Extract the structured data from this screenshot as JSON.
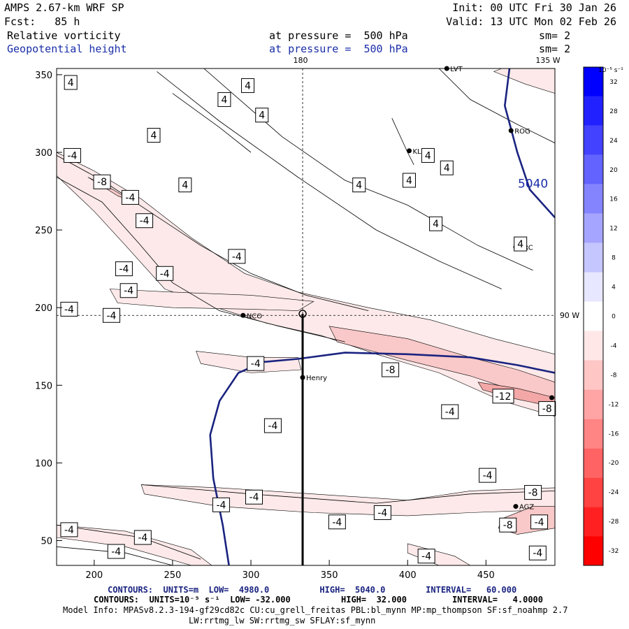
{
  "header": {
    "model": "AMPS 2.67-km WRF SP",
    "forecast": "Fcst:   85 h",
    "init": "Init: 00 UTC Fri 30 Jan 26",
    "valid": "Valid: 13 UTC Mon 02 Feb 26",
    "field1_name": "Relative vorticity",
    "field1_level": "at pressure =  500 hPa",
    "field1_smooth": "sm= 2",
    "field2_name": "Geopotential height",
    "field2_level": "at pressure =  500 hPa",
    "field2_smooth": "sm= 2"
  },
  "map_labels": {
    "lon_180": "180",
    "lon_135w": "135 W",
    "lat_90w": "90 W",
    "colorbar_unit": "10⁻⁵ s⁻¹"
  },
  "stations": [
    {
      "name": "NCO",
      "x": 295,
      "y": 195
    },
    {
      "name": "Henry",
      "x": 333,
      "y": 155
    },
    {
      "name": "KLN",
      "x": 401,
      "y": 301
    },
    {
      "name": "ROG",
      "x": 466,
      "y": 314
    },
    {
      "name": "LVT",
      "x": 425,
      "y": 354
    },
    {
      "name": "ERC",
      "x": 469,
      "y": 239
    },
    {
      "name": "AGZ",
      "x": 469,
      "y": 72
    },
    {
      "name": "",
      "x": 492,
      "y": 142
    }
  ],
  "contour_labels": [
    {
      "text": "4",
      "x": 185,
      "y": 345
    },
    {
      "text": "4",
      "x": 298,
      "y": 343
    },
    {
      "text": "4",
      "x": 307,
      "y": 324
    },
    {
      "text": "4",
      "x": 283,
      "y": 334
    },
    {
      "text": "4",
      "x": 238,
      "y": 311
    },
    {
      "text": "4",
      "x": 258,
      "y": 279
    },
    {
      "text": "4",
      "x": 369,
      "y": 279
    },
    {
      "text": "4",
      "x": 401,
      "y": 282
    },
    {
      "text": "4",
      "x": 413,
      "y": 298
    },
    {
      "text": "4",
      "x": 425,
      "y": 290
    },
    {
      "text": "4",
      "x": 418,
      "y": 254
    },
    {
      "text": "4",
      "x": 472,
      "y": 241
    },
    {
      "text": "-4",
      "x": 186,
      "y": 298
    },
    {
      "text": "-8",
      "x": 205,
      "y": 281
    },
    {
      "text": "-4",
      "x": 223,
      "y": 271
    },
    {
      "text": "-4",
      "x": 232,
      "y": 256
    },
    {
      "text": "-4",
      "x": 291,
      "y": 233
    },
    {
      "text": "-4",
      "x": 219,
      "y": 225
    },
    {
      "text": "-4",
      "x": 245,
      "y": 222
    },
    {
      "text": "-4",
      "x": 222,
      "y": 211
    },
    {
      "text": "-4",
      "x": 184,
      "y": 199
    },
    {
      "text": "-4",
      "x": 211,
      "y": 195
    },
    {
      "text": "-4",
      "x": 303,
      "y": 164
    },
    {
      "text": "-8",
      "x": 389,
      "y": 160
    },
    {
      "text": "-12",
      "x": 461,
      "y": 143
    },
    {
      "text": "-4",
      "x": 427,
      "y": 133
    },
    {
      "text": "-8",
      "x": 489,
      "y": 135
    },
    {
      "text": "-4",
      "x": 314,
      "y": 124
    },
    {
      "text": "-4",
      "x": 451,
      "y": 92
    },
    {
      "text": "-8",
      "x": 480,
      "y": 81
    },
    {
      "text": "-4",
      "x": 302,
      "y": 78
    },
    {
      "text": "-4",
      "x": 281,
      "y": 73
    },
    {
      "text": "-4",
      "x": 384,
      "y": 68
    },
    {
      "text": "-4",
      "x": 355,
      "y": 62
    },
    {
      "text": "-8",
      "x": 464,
      "y": 60
    },
    {
      "text": "-4",
      "x": 484,
      "y": 62
    },
    {
      "text": "-4",
      "x": 184,
      "y": 57
    },
    {
      "text": "-4",
      "x": 231,
      "y": 52
    },
    {
      "text": "-4",
      "x": 214,
      "y": 43
    },
    {
      "text": "-4",
      "x": 412,
      "y": 40
    },
    {
      "text": "-4",
      "x": 483,
      "y": 42
    }
  ],
  "height_label": {
    "text": "5040",
    "x": 480,
    "y": 280
  },
  "chart_data": {
    "type": "contour",
    "x_axis": {
      "ticks": [
        200,
        250,
        300,
        350,
        400,
        450
      ],
      "range": [
        176,
        494
      ]
    },
    "y_axis": {
      "ticks": [
        50,
        100,
        150,
        200,
        250,
        300,
        350
      ],
      "range": [
        34,
        354
      ]
    },
    "cross_section": {
      "x": 333,
      "y_from": 34,
      "y_to": 196
    },
    "guide_lines": {
      "x": 333,
      "y": 195
    },
    "colorbar": {
      "levels": [
        -32,
        -28,
        -24,
        -20,
        -16,
        -12,
        -8,
        -4,
        0,
        4,
        8,
        12,
        16,
        20,
        24,
        28,
        32
      ],
      "colors": [
        "#ff0000",
        "#ff2121",
        "#ff4242",
        "#ff6363",
        "#ff8484",
        "#ffa5a5",
        "#ffc6c6",
        "#ffe7e7",
        "#ffffff",
        "#e7e7ff",
        "#c6c6ff",
        "#a5a5ff",
        "#8484ff",
        "#6363ff",
        "#4242ff",
        "#2121ff",
        "#0000ff"
      ]
    },
    "vorticity_bands": [
      {
        "level": -4,
        "color": "#fde9e9",
        "points": [
          [
            176,
            300
          ],
          [
            200,
            288
          ],
          [
            230,
            270
          ],
          [
            262,
            245
          ],
          [
            296,
            222
          ],
          [
            330,
            210
          ],
          [
            375,
            200
          ],
          [
            415,
            192
          ],
          [
            455,
            180
          ],
          [
            494,
            170
          ],
          [
            494,
            130
          ],
          [
            460,
            140
          ],
          [
            420,
            158
          ],
          [
            380,
            170
          ],
          [
            345,
            182
          ],
          [
            310,
            190
          ],
          [
            278,
            200
          ],
          [
            245,
            212
          ],
          [
            220,
            240
          ],
          [
            200,
            262
          ],
          [
            176,
            285
          ]
        ]
      },
      {
        "level": -4,
        "color": "#fde9e9",
        "points": [
          [
            210,
            212
          ],
          [
            250,
            210
          ],
          [
            300,
            208
          ],
          [
            340,
            204
          ],
          [
            330,
            198
          ],
          [
            300,
            199
          ],
          [
            250,
            200
          ],
          [
            215,
            203
          ]
        ]
      },
      {
        "level": -4,
        "color": "#fde9e9",
        "points": [
          [
            265,
            172
          ],
          [
            300,
            168
          ],
          [
            330,
            168
          ],
          [
            332,
            160
          ],
          [
            300,
            158
          ],
          [
            268,
            164
          ]
        ]
      },
      {
        "level": -8,
        "color": "#f9c8c8",
        "points": [
          [
            196,
            284
          ],
          [
            215,
            272
          ],
          [
            225,
            268
          ],
          [
            212,
            276
          ]
        ]
      },
      {
        "level": -8,
        "color": "#f9c8c8",
        "points": [
          [
            350,
            188
          ],
          [
            400,
            180
          ],
          [
            440,
            168
          ],
          [
            470,
            160
          ],
          [
            494,
            152
          ],
          [
            494,
            140
          ],
          [
            470,
            146
          ],
          [
            440,
            156
          ],
          [
            400,
            166
          ],
          [
            355,
            178
          ]
        ]
      },
      {
        "level": -12,
        "color": "#f3a7a7",
        "points": [
          [
            445,
            152
          ],
          [
            470,
            148
          ],
          [
            494,
            142
          ],
          [
            494,
            136
          ],
          [
            470,
            141
          ],
          [
            448,
            147
          ]
        ]
      },
      {
        "level": -4,
        "color": "#fde9e9",
        "points": [
          [
            230,
            86
          ],
          [
            280,
            84
          ],
          [
            340,
            80
          ],
          [
            400,
            76
          ],
          [
            440,
            82
          ],
          [
            494,
            84
          ],
          [
            494,
            70
          ],
          [
            440,
            68
          ],
          [
            400,
            66
          ],
          [
            340,
            68
          ],
          [
            280,
            72
          ],
          [
            232,
            80
          ]
        ]
      },
      {
        "level": -8,
        "color": "#f9c8c8",
        "points": [
          [
            460,
            64
          ],
          [
            480,
            72
          ],
          [
            494,
            72
          ],
          [
            494,
            58
          ],
          [
            470,
            54
          ],
          [
            458,
            58
          ]
        ]
      },
      {
        "level": -4,
        "color": "#fde9e9",
        "points": [
          [
            176,
            60
          ],
          [
            220,
            56
          ],
          [
            262,
            44
          ],
          [
            275,
            34
          ],
          [
            262,
            34
          ],
          [
            220,
            46
          ],
          [
            176,
            52
          ]
        ]
      },
      {
        "level": -4,
        "color": "#fde9e9",
        "points": [
          [
            400,
            48
          ],
          [
            430,
            40
          ],
          [
            440,
            34
          ],
          [
            420,
            34
          ],
          [
            400,
            42
          ]
        ]
      },
      {
        "level": -4,
        "color": "#fde9e9",
        "points": [
          [
            455,
            352
          ],
          [
            475,
            344
          ],
          [
            494,
            338
          ],
          [
            494,
            354
          ],
          [
            460,
            354
          ]
        ]
      }
    ],
    "vorticity_contours": [
      [
        [
          176,
          298
        ],
        [
          205,
          282
        ],
        [
          235,
          262
        ],
        [
          268,
          240
        ],
        [
          300,
          222
        ],
        [
          335,
          208
        ],
        [
          375,
          198
        ]
      ],
      [
        [
          176,
          284
        ],
        [
          205,
          268
        ],
        [
          228,
          242
        ],
        [
          250,
          216
        ],
        [
          280,
          198
        ],
        [
          318,
          188
        ],
        [
          360,
          178
        ]
      ],
      [
        [
          240,
          352
        ],
        [
          280,
          320
        ],
        [
          330,
          284
        ],
        [
          380,
          250
        ],
        [
          420,
          230
        ],
        [
          460,
          212
        ]
      ],
      [
        [
          270,
          354
        ],
        [
          320,
          310
        ],
        [
          360,
          282
        ],
        [
          400,
          266
        ],
        [
          445,
          240
        ],
        [
          480,
          224
        ]
      ],
      [
        [
          250,
          338
        ],
        [
          280,
          316
        ],
        [
          300,
          300
        ]
      ],
      [
        [
          390,
          322
        ],
        [
          400,
          300
        ],
        [
          404,
          292
        ]
      ],
      [
        [
          420,
          354
        ],
        [
          440,
          334
        ],
        [
          470,
          318
        ],
        [
          494,
          306
        ]
      ],
      [
        [
          230,
          86
        ],
        [
          300,
          80
        ],
        [
          380,
          74
        ],
        [
          440,
          80
        ],
        [
          494,
          82
        ]
      ],
      [
        [
          176,
          60
        ],
        [
          230,
          52
        ],
        [
          268,
          38
        ]
      ],
      [
        [
          176,
          46
        ],
        [
          220,
          42
        ],
        [
          250,
          34
        ]
      ]
    ],
    "height_contours": [
      {
        "value": 5040,
        "points": [
          [
            465,
            354
          ],
          [
            462,
            330
          ],
          [
            470,
            300
          ],
          [
            478,
            276
          ],
          [
            494,
            258
          ]
        ]
      },
      {
        "value": 4980,
        "points": [
          [
            286,
            34
          ],
          [
            282,
            60
          ],
          [
            276,
            90
          ],
          [
            274,
            118
          ],
          [
            280,
            140
          ],
          [
            292,
            158
          ],
          [
            308,
            165
          ],
          [
            330,
            167
          ],
          [
            360,
            171
          ],
          [
            400,
            170
          ],
          [
            440,
            168
          ],
          [
            470,
            163
          ],
          [
            494,
            158
          ]
        ]
      }
    ]
  },
  "footer": {
    "line1": "CONTOURS:  UNITS=m  LOW=  4980.0          HIGH=  5040.0        INTERVAL=   60.000",
    "line2": "CONTOURS:  UNITS=10⁻⁵ s⁻¹  LOW= -32.000          HIGH=  32.000         INTERVAL=   4.0000",
    "line3": "Model Info: MPASv8.2.3-194-gf29cd82c CU:cu_grell_freitas PBL:bl_mynn MP:mp_thompson SF:sf_noahmp 2.7",
    "line4": "LW:rrtmg_lw SW:rrtmg_sw SFLAY:sf_mynn"
  }
}
